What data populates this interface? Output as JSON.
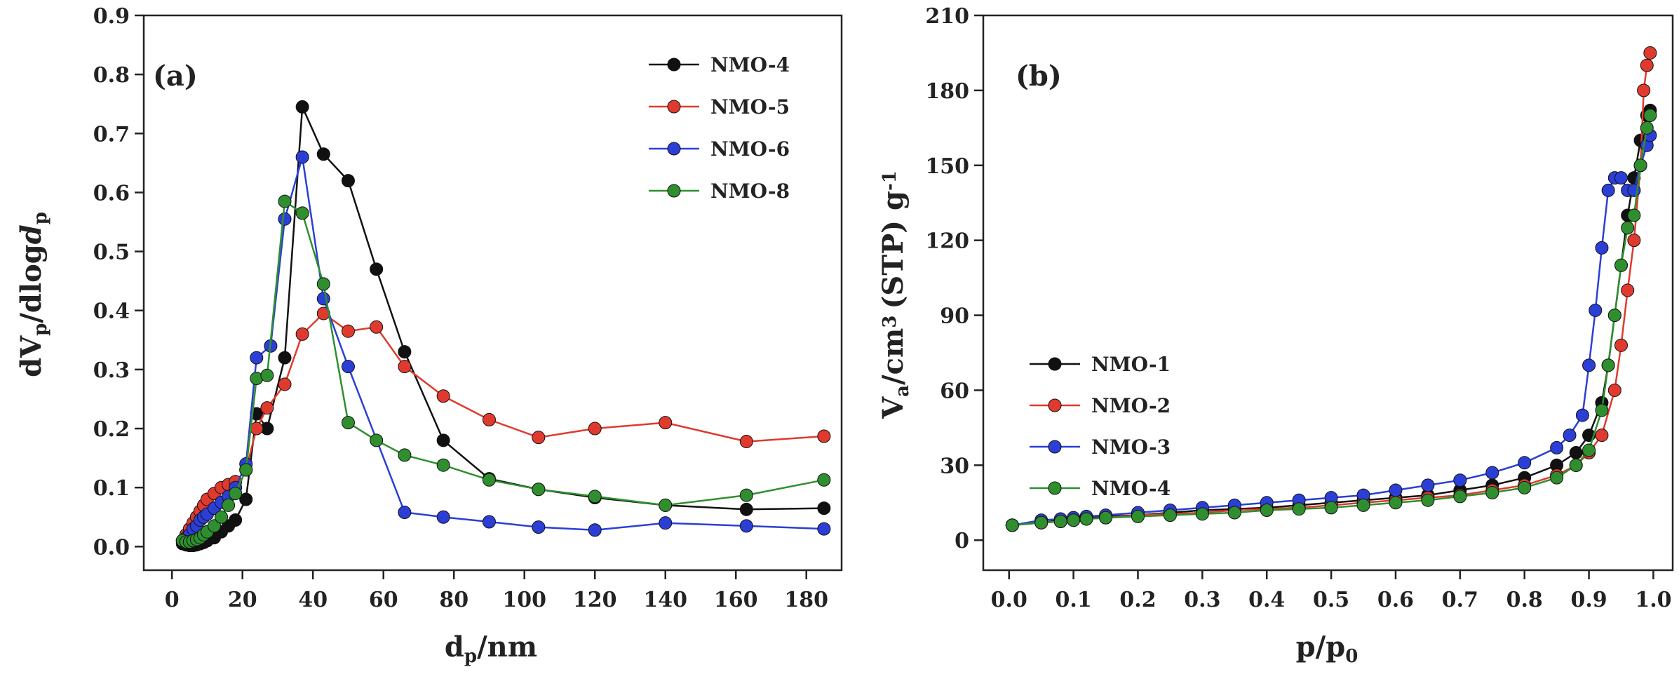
{
  "chart_data": [
    {
      "type": "line",
      "panel_label": "(a)",
      "xlabel": {
        "main": "d",
        "sub": "p",
        "rest": "/nm"
      },
      "ylabel": {
        "parts": [
          [
            "dV",
            "n"
          ],
          [
            "p",
            "sub"
          ],
          [
            "/dlog",
            "n"
          ],
          [
            "d",
            "i"
          ],
          [
            "p",
            "sub"
          ]
        ]
      },
      "xlim": [
        -8,
        190
      ],
      "ylim": [
        -0.04,
        0.9
      ],
      "xticks": [
        0,
        20,
        40,
        60,
        80,
        100,
        120,
        140,
        160,
        180
      ],
      "yticks": [
        0.0,
        0.1,
        0.2,
        0.3,
        0.4,
        0.5,
        0.6,
        0.7,
        0.8,
        0.9
      ],
      "ytick_decimals": 1,
      "legend_position": "top-right",
      "series": [
        {
          "name": "NMO-4",
          "color": "#111111",
          "x": [
            3,
            4,
            5,
            6,
            7,
            8,
            9,
            10,
            12,
            14,
            16,
            18,
            21,
            24,
            27,
            32,
            37,
            43,
            50,
            58,
            66,
            77,
            90,
            104,
            120,
            140,
            163,
            185
          ],
          "y": [
            0.005,
            0.003,
            0.002,
            0.002,
            0.003,
            0.005,
            0.007,
            0.01,
            0.015,
            0.025,
            0.035,
            0.045,
            0.08,
            0.225,
            0.2,
            0.32,
            0.745,
            0.665,
            0.62,
            0.47,
            0.33,
            0.18,
            0.115,
            0.097,
            0.083,
            0.07,
            0.063,
            0.065
          ]
        },
        {
          "name": "NMO-5",
          "color": "#e03a2e",
          "x": [
            3,
            4,
            5,
            6,
            7,
            8,
            9,
            10,
            12,
            14,
            16,
            18,
            21,
            24,
            27,
            32,
            37,
            43,
            50,
            58,
            66,
            77,
            90,
            104,
            120,
            140,
            163,
            185
          ],
          "y": [
            0.01,
            0.02,
            0.03,
            0.04,
            0.05,
            0.06,
            0.07,
            0.08,
            0.09,
            0.1,
            0.105,
            0.11,
            0.13,
            0.2,
            0.235,
            0.275,
            0.36,
            0.395,
            0.365,
            0.372,
            0.305,
            0.255,
            0.215,
            0.185,
            0.2,
            0.21,
            0.178,
            0.187
          ]
        },
        {
          "name": "NMO-6",
          "color": "#2b3fd6",
          "x": [
            3,
            4,
            5,
            6,
            7,
            8,
            9,
            10,
            12,
            14,
            16,
            18,
            21,
            24,
            28,
            32,
            37,
            43,
            50,
            66,
            77,
            90,
            104,
            120,
            140,
            163,
            185
          ],
          "y": [
            0.01,
            0.015,
            0.02,
            0.03,
            0.035,
            0.045,
            0.05,
            0.055,
            0.065,
            0.075,
            0.085,
            0.1,
            0.14,
            0.32,
            0.34,
            0.555,
            0.66,
            0.42,
            0.305,
            0.058,
            0.05,
            0.042,
            0.033,
            0.028,
            0.04,
            0.035,
            0.03
          ]
        },
        {
          "name": "NMO-8",
          "color": "#2f8f2f",
          "x": [
            3,
            4,
            5,
            6,
            7,
            8,
            9,
            10,
            12,
            14,
            16,
            18,
            21,
            24,
            27,
            32,
            37,
            43,
            50,
            58,
            66,
            77,
            90,
            104,
            120,
            140,
            163,
            185
          ],
          "y": [
            0.01,
            0.008,
            0.008,
            0.01,
            0.012,
            0.015,
            0.02,
            0.025,
            0.035,
            0.05,
            0.07,
            0.09,
            0.13,
            0.285,
            0.29,
            0.585,
            0.565,
            0.445,
            0.21,
            0.18,
            0.155,
            0.138,
            0.113,
            0.097,
            0.085,
            0.07,
            0.087,
            0.113
          ]
        }
      ]
    },
    {
      "type": "line",
      "panel_label": "(b)",
      "xlabel": {
        "main": "p/p",
        "sub": "0",
        "rest": ""
      },
      "ylabel": {
        "parts": [
          [
            "V",
            "n"
          ],
          [
            "a",
            "sub"
          ],
          [
            "/cm",
            "n"
          ],
          [
            "3",
            "sup"
          ],
          [
            "(STP) g",
            "n"
          ],
          [
            "-1",
            "sup"
          ]
        ]
      },
      "xlim": [
        -0.04,
        1.03
      ],
      "ylim": [
        -12,
        210
      ],
      "xticks": [
        0.0,
        0.1,
        0.2,
        0.3,
        0.4,
        0.5,
        0.6,
        0.7,
        0.8,
        0.9,
        1.0
      ],
      "yticks": [
        0,
        30,
        60,
        90,
        120,
        150,
        180,
        210
      ],
      "xtick_decimals": 1,
      "legend_position": "bottom-left",
      "series": [
        {
          "name": "NMO-1",
          "color": "#111111",
          "x": [
            0.005,
            0.05,
            0.08,
            0.1,
            0.12,
            0.15,
            0.2,
            0.25,
            0.3,
            0.35,
            0.4,
            0.45,
            0.5,
            0.55,
            0.6,
            0.65,
            0.7,
            0.75,
            0.8,
            0.85,
            0.88,
            0.9,
            0.92,
            0.93,
            0.94,
            0.95,
            0.96,
            0.97,
            0.98,
            0.99,
            0.995
          ],
          "y": [
            6,
            7,
            8,
            8.5,
            9,
            9.5,
            10,
            11,
            12,
            12.5,
            13,
            14,
            15,
            16,
            17,
            18,
            20,
            22,
            25,
            30,
            35,
            42,
            55,
            70,
            90,
            110,
            130,
            145,
            160,
            170,
            172
          ]
        },
        {
          "name": "NMO-2",
          "color": "#e03a2e",
          "x": [
            0.005,
            0.05,
            0.08,
            0.1,
            0.12,
            0.15,
            0.2,
            0.25,
            0.3,
            0.35,
            0.4,
            0.45,
            0.5,
            0.55,
            0.6,
            0.65,
            0.7,
            0.75,
            0.8,
            0.85,
            0.88,
            0.9,
            0.92,
            0.94,
            0.95,
            0.96,
            0.97,
            0.98,
            0.985,
            0.99,
            0.995
          ],
          "y": [
            6,
            7,
            7.5,
            8,
            8.5,
            9,
            10,
            10.5,
            11,
            12,
            12.5,
            13,
            14,
            15,
            16,
            17,
            18,
            20,
            22,
            26,
            30,
            35,
            42,
            60,
            78,
            100,
            120,
            150,
            180,
            190,
            195
          ]
        },
        {
          "name": "NMO-3",
          "color": "#2b3fd6",
          "x": [
            0.005,
            0.05,
            0.08,
            0.1,
            0.12,
            0.15,
            0.2,
            0.25,
            0.3,
            0.35,
            0.4,
            0.45,
            0.5,
            0.55,
            0.6,
            0.65,
            0.7,
            0.75,
            0.8,
            0.85,
            0.87,
            0.89,
            0.9,
            0.91,
            0.92,
            0.93,
            0.94,
            0.95,
            0.96,
            0.97,
            0.98,
            0.99,
            0.995
          ],
          "y": [
            6,
            8,
            8.5,
            9,
            9.5,
            10,
            11,
            12,
            13,
            14,
            15,
            16,
            17,
            18,
            20,
            22,
            24,
            27,
            31,
            37,
            42,
            50,
            70,
            92,
            117,
            140,
            145,
            145,
            140,
            140,
            150,
            158,
            162
          ]
        },
        {
          "name": "NMO-4",
          "color": "#2f8f2f",
          "x": [
            0.005,
            0.05,
            0.08,
            0.1,
            0.12,
            0.15,
            0.2,
            0.25,
            0.3,
            0.35,
            0.4,
            0.45,
            0.5,
            0.55,
            0.6,
            0.65,
            0.7,
            0.75,
            0.8,
            0.85,
            0.88,
            0.9,
            0.92,
            0.93,
            0.94,
            0.95,
            0.96,
            0.97,
            0.98,
            0.99,
            0.995
          ],
          "y": [
            6,
            7,
            7.5,
            8,
            8.5,
            9,
            9.5,
            10,
            10.5,
            11,
            12,
            12.5,
            13,
            14,
            15,
            16,
            17.5,
            19,
            21,
            25,
            30,
            36,
            52,
            70,
            90,
            110,
            125,
            130,
            150,
            165,
            170
          ]
        }
      ]
    }
  ]
}
